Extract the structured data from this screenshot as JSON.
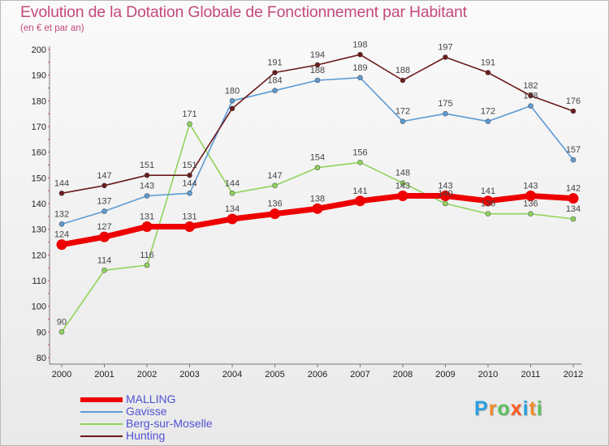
{
  "title": "Evolution de la Dotation Globale de Fonctionnement par Habitant",
  "subtitle": "(en € et par an)",
  "logo": {
    "chars": [
      "P",
      "r",
      "o",
      "x",
      "i",
      "t",
      "i"
    ],
    "colors": [
      "#2aa0e0",
      "#f08b2a",
      "#5cc05c",
      "#ff5a1e",
      "#2aa0e0",
      "#f08b2a",
      "#5cc05c"
    ]
  },
  "chart_data": {
    "type": "line",
    "categories": [
      "2000",
      "2001",
      "2002",
      "2003",
      "2004",
      "2005",
      "2006",
      "2007",
      "2008",
      "2009",
      "2010",
      "2011",
      "2012"
    ],
    "ylim": [
      80,
      200
    ],
    "yticks": [
      80,
      90,
      100,
      110,
      120,
      130,
      140,
      150,
      160,
      170,
      180,
      190,
      200
    ],
    "grid": false,
    "legend_position": "bottom-left",
    "series": [
      {
        "name": "MALLING",
        "color": "#ee0000",
        "values": [
          124,
          127,
          131,
          131,
          134,
          136,
          138,
          141,
          143,
          143,
          141,
          143,
          142
        ],
        "labels": [
          "124",
          "127",
          "131",
          "131",
          "134",
          "136",
          "138",
          "141",
          "143",
          "143",
          "141",
          "143",
          "142"
        ]
      },
      {
        "name": "Gavisse",
        "color": "#5b9bd5",
        "values": [
          132,
          137,
          143,
          144,
          180,
          184,
          188,
          189,
          172,
          175,
          172,
          178,
          157
        ],
        "labels": [
          "132",
          "137",
          "143",
          "144",
          "180",
          "184",
          "188",
          "189",
          "172",
          "175",
          "172",
          "178",
          "157"
        ]
      },
      {
        "name": "Berg-sur-Moselle",
        "color": "#8fd45a",
        "values": [
          90,
          114,
          116,
          171,
          144,
          147,
          154,
          156,
          148,
          140,
          136,
          136,
          134
        ],
        "labels": [
          "90",
          "114",
          "116",
          "171",
          "144",
          "147",
          "154",
          "156",
          "148",
          "140",
          "136",
          "136",
          "134"
        ]
      },
      {
        "name": "Hunting",
        "color": "#6b1a1a",
        "values": [
          144,
          147,
          151,
          151,
          177,
          191,
          194,
          198,
          188,
          197,
          191,
          182,
          176
        ],
        "labels": [
          "144",
          "147",
          "151",
          "151",
          "",
          "191",
          "194",
          "198",
          "188",
          "197",
          "191",
          "182",
          "176"
        ]
      }
    ]
  }
}
